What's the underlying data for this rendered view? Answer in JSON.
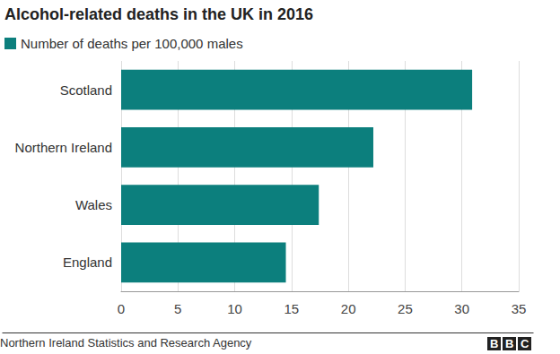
{
  "chart_data": {
    "type": "bar",
    "orientation": "horizontal",
    "title": "Alcohol-related deaths in the UK in 2016",
    "series": [
      {
        "name": "Number of deaths per 100,000 males",
        "color": "#0c7f7d",
        "values": [
          30.9,
          22.2,
          17.4,
          14.5
        ]
      }
    ],
    "categories": [
      "Scotland",
      "Northern Ireland",
      "Wales",
      "England"
    ],
    "xlim": [
      0,
      35
    ],
    "xticks": [
      0,
      5,
      10,
      15,
      20,
      25,
      30,
      35
    ],
    "grid": true,
    "legend": "top-left",
    "source": "Northern Ireland Statistics and Research Agency",
    "credit": "BBC"
  }
}
